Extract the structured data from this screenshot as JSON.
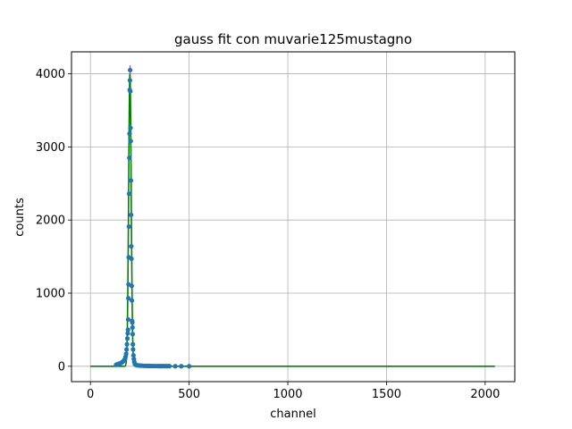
{
  "chart_data": {
    "type": "scatter",
    "title": "gauss fit con muvarie125mustagno",
    "xlabel": "channel",
    "ylabel": "counts",
    "xlim": [
      -96,
      2150
    ],
    "ylim": [
      -210,
      4300
    ],
    "xticks": [
      0,
      500,
      1000,
      1500,
      2000
    ],
    "yticks": [
      0,
      1000,
      2000,
      3000,
      4000
    ],
    "grid": true,
    "colors": {
      "points": "#1f77b4",
      "fit": "#008000",
      "errorbar": "#ff00ff",
      "grid": "#b0b0b0"
    },
    "series": [
      {
        "kind": "points",
        "x": [
          130,
          135,
          140,
          145,
          150,
          155,
          160,
          165,
          170,
          175,
          178,
          181,
          183,
          185,
          187,
          189,
          190,
          191,
          192,
          193,
          194,
          195,
          196,
          197,
          198,
          199,
          200,
          201,
          202,
          203,
          204,
          205,
          206,
          207,
          208,
          209,
          210,
          211,
          212,
          213,
          214,
          215,
          216,
          218,
          220,
          222,
          225,
          230,
          235,
          240,
          250,
          260,
          270,
          280,
          290,
          300,
          310,
          320,
          330,
          340,
          350,
          360,
          370,
          380,
          390,
          400,
          430,
          460,
          500
        ],
        "y": [
          20,
          25,
          30,
          35,
          40,
          45,
          55,
          65,
          80,
          100,
          130,
          170,
          230,
          300,
          380,
          450,
          500,
          640,
          930,
          1120,
          1490,
          1910,
          2360,
          2850,
          3180,
          3780,
          3910,
          4050,
          3760,
          3260,
          3080,
          2540,
          2070,
          1640,
          1470,
          1100,
          900,
          620,
          600,
          530,
          440,
          300,
          230,
          150,
          100,
          60,
          30,
          20,
          15,
          12,
          10,
          8,
          6,
          5,
          5,
          4,
          4,
          3,
          3,
          3,
          2,
          2,
          2,
          2,
          2,
          2,
          1,
          1,
          1
        ]
      },
      {
        "kind": "fit",
        "mu": 200,
        "sigma": 6.5,
        "amplitude": 4000,
        "xrange": [
          0,
          2050
        ]
      },
      {
        "kind": "errorbar",
        "x": 201,
        "y": 4050,
        "err": 64
      }
    ]
  }
}
